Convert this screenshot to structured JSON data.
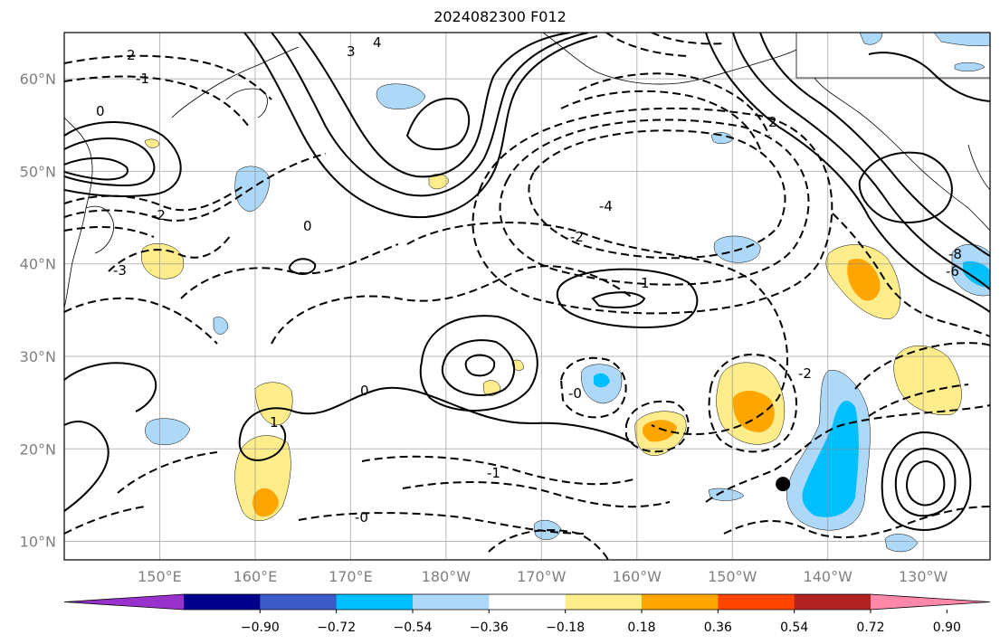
{
  "title": "2024082300 F012",
  "map": {
    "lat_labels": [
      {
        "text": "60°N",
        "lat": 60
      },
      {
        "text": "50°N",
        "lat": 50
      },
      {
        "text": "40°N",
        "lat": 40
      },
      {
        "text": "30°N",
        "lat": 30
      },
      {
        "text": "20°N",
        "lat": 20
      },
      {
        "text": "10°N",
        "lat": 10
      }
    ],
    "lon_labels": [
      {
        "text": "150°E",
        "lon": 150
      },
      {
        "text": "160°E",
        "lon": 160
      },
      {
        "text": "170°E",
        "lon": 170
      },
      {
        "text": "180°W",
        "lon": 180
      },
      {
        "text": "170°W",
        "lon": 190
      },
      {
        "text": "160°W",
        "lon": 200
      },
      {
        "text": "150°W",
        "lon": 210
      },
      {
        "text": "140°W",
        "lon": 220
      },
      {
        "text": "130°W",
        "lon": 230
      }
    ],
    "lon_range": [
      140,
      237
    ],
    "lat_range": [
      8,
      65
    ],
    "grid": true,
    "marker": {
      "name": "station-dot",
      "lon": 215.3,
      "lat": 16.2
    }
  },
  "colorbar": {
    "labels": [
      "−0.90",
      "−0.72",
      "−0.54",
      "−0.36",
      "−0.18",
      "0.18",
      "0.36",
      "0.54",
      "0.72",
      "0.90"
    ],
    "values": [
      -0.9,
      -0.72,
      -0.54,
      -0.36,
      -0.18,
      0.18,
      0.36,
      0.54,
      0.72,
      0.9
    ],
    "colors": [
      "#9932cc",
      "#00008b",
      "#3c5ac8",
      "#00bfff",
      "#add8f8",
      "#ffffff",
      "#ffec8b",
      "#ffa500",
      "#ff4500",
      "#b22222",
      "#ff88aa"
    ],
    "extend": "both"
  },
  "contour_labels": [
    "2",
    "-1",
    "0",
    "-2",
    "-3",
    "4",
    "3",
    "-4",
    "1",
    "-1",
    "0",
    "-0",
    "-2",
    "2",
    "-2",
    "1",
    "0",
    "-0",
    "-6",
    "-8"
  ]
}
